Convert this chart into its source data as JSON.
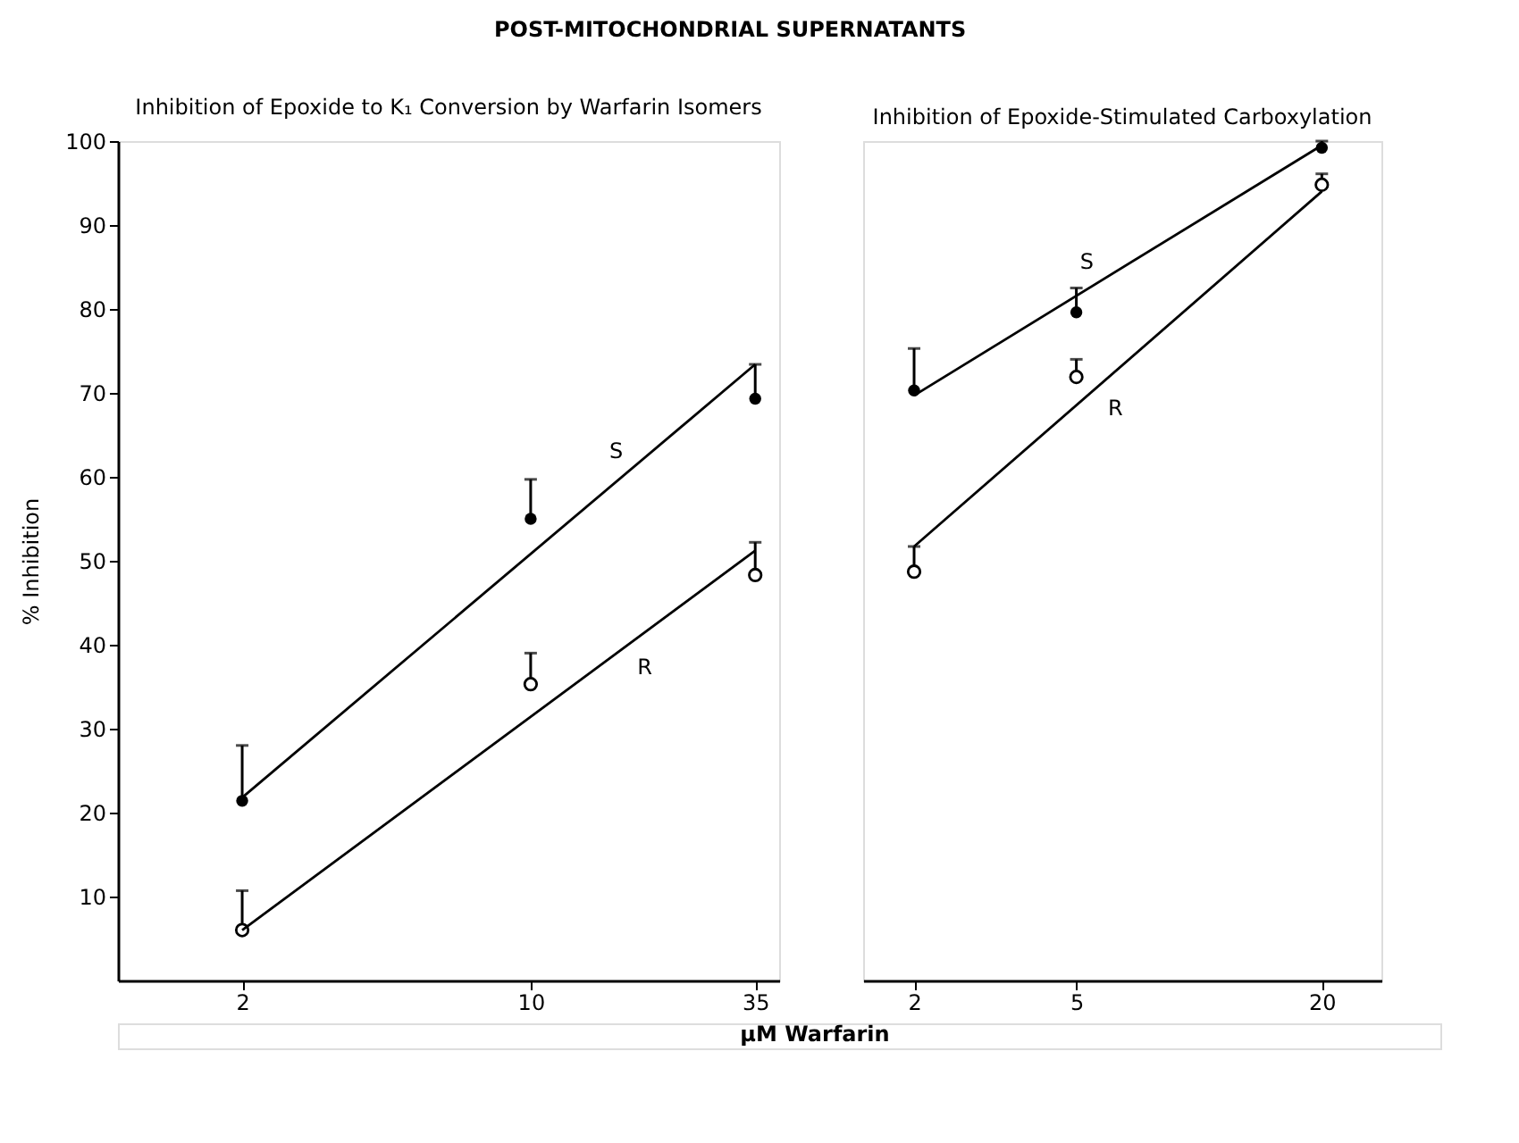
{
  "chart_data": [
    {
      "type": "scatter",
      "title": "POST-MITOCHONDRIAL SUPERNATANTS",
      "subtitle": "Inhibition of Epoxide to K₁ Conversion by Warfarin Isomers",
      "xlabel": "µM Warfarin",
      "ylabel": "% Inhibition",
      "log": "x",
      "grid": false,
      "x": [
        2,
        10,
        35
      ],
      "xlim": [
        1,
        40
      ],
      "xticks": [
        2,
        10,
        35
      ],
      "ylim": [
        0,
        100
      ],
      "yticks": [
        10,
        20,
        30,
        40,
        50,
        60,
        70,
        80,
        90,
        100
      ],
      "series": [
        {
          "marker": "circle",
          "color": "#000000",
          "values": [
            21.4,
            55.0,
            69.3
          ],
          "errors": [
            [
              21.4,
              28.0
            ],
            [
              55.0,
              59.7
            ],
            [
              69.3,
              73.4
            ]
          ]
        },
        {
          "marker": "circle",
          "color": "#000000",
          "values": [
            6.0,
            35.3,
            48.3
          ],
          "errors": [
            [
              6.0,
              10.7
            ],
            [
              35.3,
              39.0
            ],
            [
              48.3,
              52.2
            ]
          ]
        },
        {
          "type": "line",
          "name": "S",
          "marker": "none",
          "color": "#000000",
          "x": [
            2,
            35
          ],
          "values": [
            21.8,
            73.4
          ]
        },
        {
          "type": "line",
          "name": "R",
          "marker": "none",
          "color": "#000000",
          "x": [
            2,
            35
          ],
          "values": [
            6.0,
            51.2
          ]
        }
      ]
    },
    {
      "type": "scatter",
      "subtitle": "Inhibition of Epoxide-Stimulated Carboxylation",
      "log": "x",
      "grid": false,
      "tick_labels": "x",
      "x": [
        2,
        5,
        20
      ],
      "xlim": [
        1.5,
        28
      ],
      "xticks": [
        2,
        5,
        20
      ],
      "ylim": [
        0,
        100
      ],
      "series": [
        {
          "marker": "circle",
          "color": "#000000",
          "values": [
            70.3,
            79.6,
            99.2
          ],
          "errors": [
            [
              70.3,
              75.3
            ],
            [
              79.6,
              82.5
            ],
            [
              99.2,
              100
            ]
          ]
        },
        {
          "marker": "circle",
          "color": "#000000",
          "values": [
            48.7,
            71.9,
            94.8
          ],
          "errors": [
            [
              48.7,
              51.7
            ],
            [
              71.9,
              74.0
            ],
            [
              94.8,
              96.1
            ]
          ]
        },
        {
          "type": "line",
          "name": "S",
          "marker": "none",
          "color": "#000000",
          "x": [
            2,
            20
          ],
          "values": [
            69.7,
            99.5
          ]
        },
        {
          "type": "line",
          "name": "R",
          "marker": "none",
          "color": "#000000",
          "x": [
            2,
            20
          ],
          "values": [
            51.7,
            94.0
          ]
        }
      ]
    }
  ]
}
